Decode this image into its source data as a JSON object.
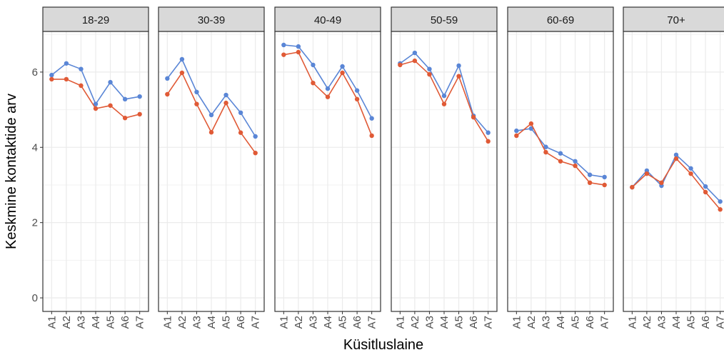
{
  "chart_data": {
    "type": "line",
    "ylabel": "Keskmine kontaktide arv",
    "xlabel": "Küsitluslaine",
    "categories": [
      "A1",
      "A2",
      "A3",
      "A4",
      "A5",
      "A6",
      "A7"
    ],
    "ylim": [
      -0.36,
      7.08
    ],
    "yticks": [
      0,
      2,
      4,
      6
    ],
    "grid": true,
    "facets": [
      {
        "title": "18-29",
        "series": [
          {
            "color": "#5a86d6",
            "values": [
              5.92,
              6.23,
              6.08,
              5.15,
              5.73,
              5.28,
              5.35
            ]
          },
          {
            "color": "#e05a36",
            "values": [
              5.81,
              5.81,
              5.64,
              5.03,
              5.11,
              4.78,
              4.88
            ]
          }
        ]
      },
      {
        "title": "30-39",
        "series": [
          {
            "color": "#5a86d6",
            "values": [
              5.83,
              6.34,
              5.47,
              4.86,
              5.39,
              4.92,
              4.29
            ]
          },
          {
            "color": "#e05a36",
            "values": [
              5.41,
              5.98,
              5.15,
              4.4,
              5.18,
              4.39,
              3.85
            ]
          }
        ]
      },
      {
        "title": "40-49",
        "series": [
          {
            "color": "#5a86d6",
            "values": [
              6.72,
              6.68,
              6.19,
              5.56,
              6.15,
              5.51,
              4.77
            ]
          },
          {
            "color": "#e05a36",
            "values": [
              6.46,
              6.53,
              5.71,
              5.34,
              5.98,
              5.28,
              4.31
            ]
          }
        ]
      },
      {
        "title": "50-59",
        "series": [
          {
            "color": "#5a86d6",
            "values": [
              6.23,
              6.51,
              6.08,
              5.37,
              6.17,
              4.84,
              4.39
            ]
          },
          {
            "color": "#e05a36",
            "values": [
              6.19,
              6.3,
              5.94,
              5.15,
              5.89,
              4.8,
              4.16
            ]
          }
        ]
      },
      {
        "title": "60-69",
        "series": [
          {
            "color": "#5a86d6",
            "values": [
              4.44,
              4.5,
              4.01,
              3.84,
              3.63,
              3.27,
              3.21
            ]
          },
          {
            "color": "#e05a36",
            "values": [
              4.31,
              4.63,
              3.87,
              3.63,
              3.51,
              3.06,
              3.0
            ]
          }
        ]
      },
      {
        "title": "70+",
        "series": [
          {
            "color": "#5a86d6",
            "values": [
              2.94,
              3.38,
              2.98,
              3.8,
              3.44,
              2.96,
              2.56
            ]
          },
          {
            "color": "#e05a36",
            "values": [
              2.94,
              3.3,
              3.06,
              3.7,
              3.3,
              2.81,
              2.35
            ]
          }
        ]
      }
    ]
  }
}
